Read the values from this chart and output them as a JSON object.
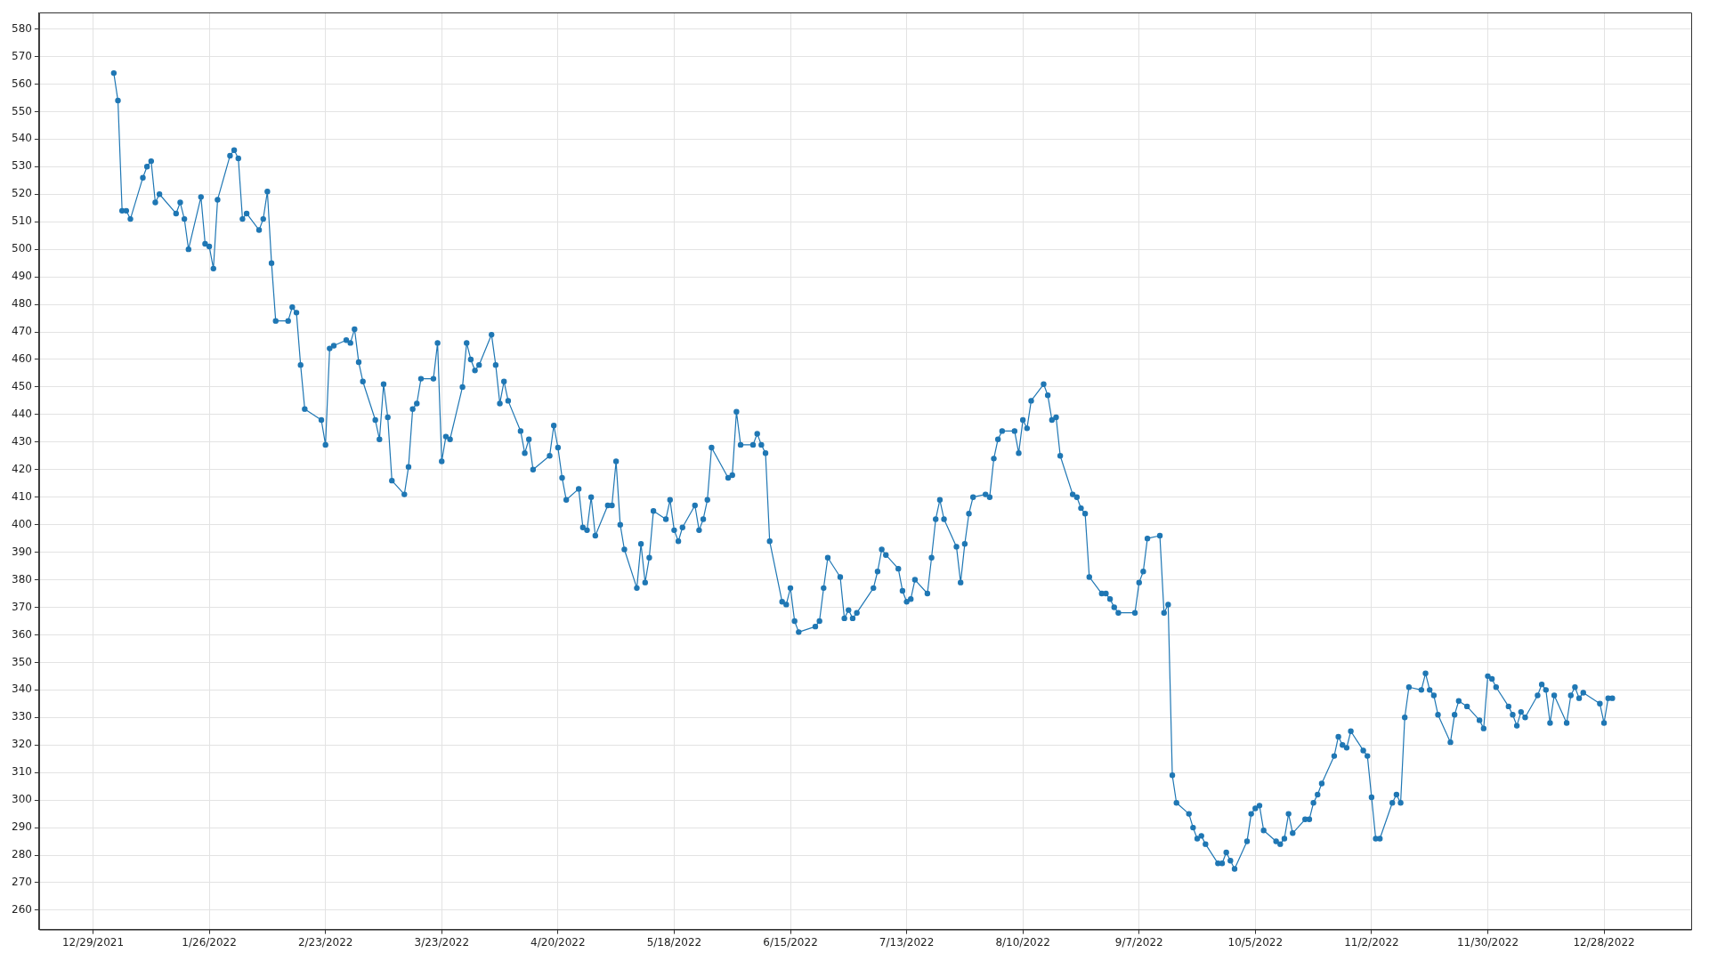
{
  "chart_data": {
    "type": "line",
    "color": "#1f77b4",
    "marker": "circle",
    "line_style": "solid",
    "grid": true,
    "x": [
      "2022-01-03",
      "2022-01-04",
      "2022-01-05",
      "2022-01-06",
      "2022-01-07",
      "2022-01-10",
      "2022-01-11",
      "2022-01-12",
      "2022-01-13",
      "2022-01-14",
      "2022-01-18",
      "2022-01-19",
      "2022-01-20",
      "2022-01-21",
      "2022-01-24",
      "2022-01-25",
      "2022-01-26",
      "2022-01-27",
      "2022-01-28",
      "2022-01-31",
      "2022-02-01",
      "2022-02-02",
      "2022-02-03",
      "2022-02-04",
      "2022-02-07",
      "2022-02-08",
      "2022-02-09",
      "2022-02-10",
      "2022-02-11",
      "2022-02-14",
      "2022-02-15",
      "2022-02-16",
      "2022-02-17",
      "2022-02-18",
      "2022-02-22",
      "2022-02-23",
      "2022-02-24",
      "2022-02-25",
      "2022-02-28",
      "2022-03-01",
      "2022-03-02",
      "2022-03-03",
      "2022-03-04",
      "2022-03-07",
      "2022-03-08",
      "2022-03-09",
      "2022-03-10",
      "2022-03-11",
      "2022-03-14",
      "2022-03-15",
      "2022-03-16",
      "2022-03-17",
      "2022-03-18",
      "2022-03-21",
      "2022-03-22",
      "2022-03-23",
      "2022-03-24",
      "2022-03-25",
      "2022-03-28",
      "2022-03-29",
      "2022-03-30",
      "2022-03-31",
      "2022-04-01",
      "2022-04-04",
      "2022-04-05",
      "2022-04-06",
      "2022-04-07",
      "2022-04-08",
      "2022-04-11",
      "2022-04-12",
      "2022-04-13",
      "2022-04-14",
      "2022-04-18",
      "2022-04-19",
      "2022-04-20",
      "2022-04-21",
      "2022-04-22",
      "2022-04-25",
      "2022-04-26",
      "2022-04-27",
      "2022-04-28",
      "2022-04-29",
      "2022-05-02",
      "2022-05-03",
      "2022-05-04",
      "2022-05-05",
      "2022-05-06",
      "2022-05-09",
      "2022-05-10",
      "2022-05-11",
      "2022-05-12",
      "2022-05-13",
      "2022-05-16",
      "2022-05-17",
      "2022-05-18",
      "2022-05-19",
      "2022-05-20",
      "2022-05-23",
      "2022-05-24",
      "2022-05-25",
      "2022-05-26",
      "2022-05-27",
      "2022-05-31",
      "2022-06-01",
      "2022-06-02",
      "2022-06-03",
      "2022-06-06",
      "2022-06-07",
      "2022-06-08",
      "2022-06-09",
      "2022-06-10",
      "2022-06-13",
      "2022-06-14",
      "2022-06-15",
      "2022-06-16",
      "2022-06-17",
      "2022-06-21",
      "2022-06-22",
      "2022-06-23",
      "2022-06-24",
      "2022-06-27",
      "2022-06-28",
      "2022-06-29",
      "2022-06-30",
      "2022-07-01",
      "2022-07-05",
      "2022-07-06",
      "2022-07-07",
      "2022-07-08",
      "2022-07-11",
      "2022-07-12",
      "2022-07-13",
      "2022-07-14",
      "2022-07-15",
      "2022-07-18",
      "2022-07-19",
      "2022-07-20",
      "2022-07-21",
      "2022-07-22",
      "2022-07-25",
      "2022-07-26",
      "2022-07-27",
      "2022-07-28",
      "2022-07-29",
      "2022-08-01",
      "2022-08-02",
      "2022-08-03",
      "2022-08-04",
      "2022-08-05",
      "2022-08-08",
      "2022-08-09",
      "2022-08-10",
      "2022-08-11",
      "2022-08-12",
      "2022-08-15",
      "2022-08-16",
      "2022-08-17",
      "2022-08-18",
      "2022-08-19",
      "2022-08-22",
      "2022-08-23",
      "2022-08-24",
      "2022-08-25",
      "2022-08-26",
      "2022-08-29",
      "2022-08-30",
      "2022-08-31",
      "2022-09-01",
      "2022-09-02",
      "2022-09-06",
      "2022-09-07",
      "2022-09-08",
      "2022-09-09",
      "2022-09-12",
      "2022-09-13",
      "2022-09-14",
      "2022-09-15",
      "2022-09-16",
      "2022-09-19",
      "2022-09-20",
      "2022-09-21",
      "2022-09-22",
      "2022-09-23",
      "2022-09-26",
      "2022-09-27",
      "2022-09-28",
      "2022-09-29",
      "2022-09-30",
      "2022-10-03",
      "2022-10-04",
      "2022-10-05",
      "2022-10-06",
      "2022-10-07",
      "2022-10-10",
      "2022-10-11",
      "2022-10-12",
      "2022-10-13",
      "2022-10-14",
      "2022-10-17",
      "2022-10-18",
      "2022-10-19",
      "2022-10-20",
      "2022-10-21",
      "2022-10-24",
      "2022-10-25",
      "2022-10-26",
      "2022-10-27",
      "2022-10-28",
      "2022-10-31",
      "2022-11-01",
      "2022-11-02",
      "2022-11-03",
      "2022-11-04",
      "2022-11-07",
      "2022-11-08",
      "2022-11-09",
      "2022-11-10",
      "2022-11-11",
      "2022-11-14",
      "2022-11-15",
      "2022-11-16",
      "2022-11-17",
      "2022-11-18",
      "2022-11-21",
      "2022-11-22",
      "2022-11-23",
      "2022-11-25",
      "2022-11-28",
      "2022-11-29",
      "2022-11-30",
      "2022-12-01",
      "2022-12-02",
      "2022-12-05",
      "2022-12-06",
      "2022-12-07",
      "2022-12-08",
      "2022-12-09",
      "2022-12-12",
      "2022-12-13",
      "2022-12-14",
      "2022-12-15",
      "2022-12-16",
      "2022-12-19",
      "2022-12-20",
      "2022-12-21",
      "2022-12-22",
      "2022-12-23",
      "2022-12-27",
      "2022-12-28",
      "2022-12-29",
      "2022-12-30"
    ],
    "values": [
      564,
      554,
      514,
      514,
      511,
      526,
      530,
      532,
      517,
      520,
      513,
      517,
      511,
      500,
      519,
      502,
      501,
      493,
      518,
      534,
      536,
      533,
      511,
      513,
      507,
      511,
      521,
      495,
      474,
      474,
      479,
      477,
      458,
      442,
      438,
      429,
      464,
      465,
      467,
      466,
      471,
      459,
      452,
      438,
      431,
      451,
      439,
      416,
      411,
      421,
      442,
      444,
      453,
      453,
      466,
      423,
      432,
      431,
      450,
      466,
      460,
      456,
      458,
      469,
      458,
      444,
      452,
      445,
      434,
      426,
      431,
      420,
      425,
      436,
      428,
      417,
      409,
      413,
      399,
      398,
      410,
      396,
      407,
      407,
      423,
      400,
      391,
      377,
      393,
      379,
      388,
      405,
      402,
      409,
      398,
      394,
      399,
      407,
      398,
      402,
      409,
      428,
      417,
      418,
      441,
      429,
      429,
      433,
      429,
      426,
      394,
      372,
      371,
      377,
      365,
      361,
      363,
      365,
      377,
      388,
      381,
      366,
      369,
      366,
      368,
      377,
      383,
      391,
      389,
      384,
      376,
      372,
      373,
      380,
      375,
      388,
      402,
      409,
      402,
      392,
      379,
      393,
      404,
      410,
      411,
      410,
      424,
      431,
      434,
      434,
      426,
      438,
      435,
      445,
      451,
      447,
      438,
      439,
      425,
      411,
      410,
      406,
      404,
      381,
      375,
      375,
      373,
      370,
      368,
      368,
      379,
      383,
      395,
      396,
      368,
      371,
      309,
      299,
      295,
      290,
      286,
      287,
      284,
      277,
      277,
      281,
      278,
      275,
      285,
      295,
      297,
      298,
      289,
      285,
      284,
      286,
      295,
      288,
      293,
      293,
      299,
      302,
      306,
      316,
      323,
      320,
      319,
      325,
      318,
      316,
      301,
      286,
      286,
      299,
      302,
      299,
      330,
      341,
      340,
      346,
      340,
      338,
      331,
      321,
      331,
      336,
      334,
      329,
      326,
      345,
      344,
      341,
      334,
      331,
      327,
      332,
      330,
      338,
      342,
      340,
      328,
      338,
      328,
      338,
      341,
      337,
      339,
      335,
      328,
      337,
      337
    ],
    "xlim": [
      "2021-12-16",
      "2023-01-18"
    ],
    "xticks": [
      {
        "value": "2021-12-29",
        "label": "12/29/2021"
      },
      {
        "value": "2022-01-26",
        "label": "1/26/2022"
      },
      {
        "value": "2022-02-23",
        "label": "2/23/2022"
      },
      {
        "value": "2022-03-23",
        "label": "3/23/2022"
      },
      {
        "value": "2022-04-20",
        "label": "4/20/2022"
      },
      {
        "value": "2022-05-18",
        "label": "5/18/2022"
      },
      {
        "value": "2022-06-15",
        "label": "6/15/2022"
      },
      {
        "value": "2022-07-13",
        "label": "7/13/2022"
      },
      {
        "value": "2022-08-10",
        "label": "8/10/2022"
      },
      {
        "value": "2022-09-07",
        "label": "9/7/2022"
      },
      {
        "value": "2022-10-05",
        "label": "10/5/2022"
      },
      {
        "value": "2022-11-02",
        "label": "11/2/2022"
      },
      {
        "value": "2022-11-30",
        "label": "11/30/2022"
      },
      {
        "value": "2022-12-28",
        "label": "12/28/2022"
      }
    ],
    "ylim": [
      253,
      586
    ],
    "yticks": [
      260,
      270,
      280,
      290,
      300,
      310,
      320,
      330,
      340,
      350,
      360,
      370,
      380,
      390,
      400,
      410,
      420,
      430,
      440,
      450,
      460,
      470,
      480,
      490,
      500,
      510,
      520,
      530,
      540,
      550,
      560,
      570,
      580
    ]
  }
}
